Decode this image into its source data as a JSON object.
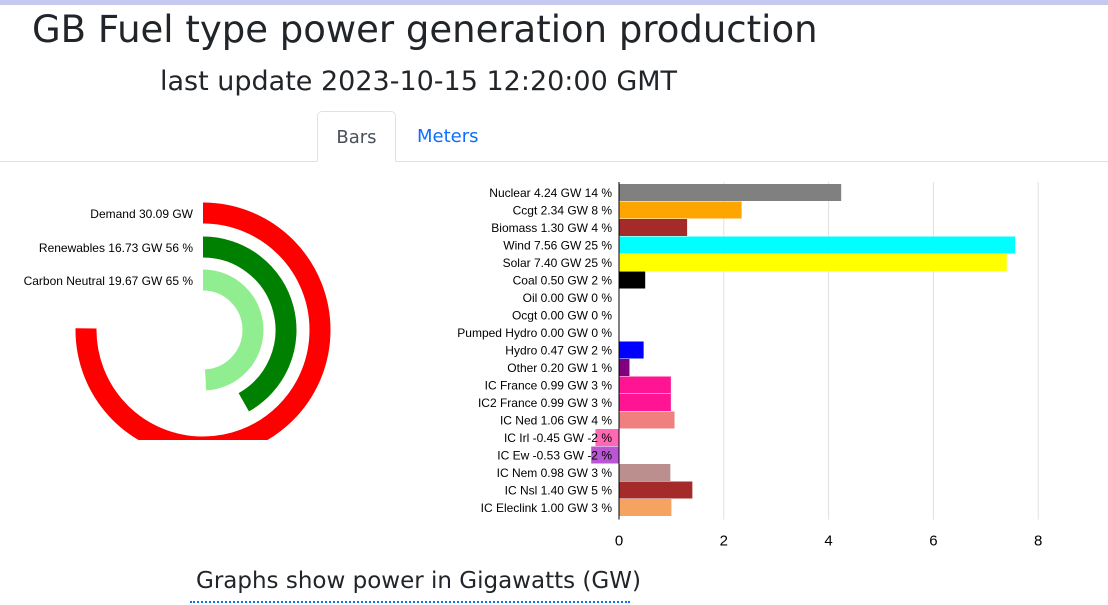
{
  "page": {
    "title": "GB Fuel type power generation production",
    "subtitle": "last update 2023-10-15 12:20:00 GMT",
    "footer": "Graphs show power in Gigawatts (GW)"
  },
  "tabs": [
    {
      "label": "Bars",
      "active": true
    },
    {
      "label": "Meters",
      "active": false
    }
  ],
  "colors": {
    "tab_link": "#0d6efd",
    "topbar": "#c5c9f0"
  },
  "chart_data": [
    {
      "type": "radial-bar",
      "max": 40,
      "series": [
        {
          "label": "Demand 30.09 GW",
          "value": 30.09,
          "color": "#ff0000"
        },
        {
          "label": "Renewables 16.73 GW 56 %",
          "value": 16.73,
          "color": "#008000"
        },
        {
          "label": "Carbon Neutral 19.67 GW 65 %",
          "value": 19.67,
          "color": "#90ee90"
        }
      ]
    },
    {
      "type": "bar",
      "orientation": "horizontal",
      "xlim": [
        -0.6,
        8.4
      ],
      "xticks": [
        0,
        2,
        4,
        6,
        8
      ],
      "grid": true,
      "bars": [
        {
          "label": "Nuclear 4.24 GW 14 %",
          "value": 4.24,
          "color": "#808080"
        },
        {
          "label": "Ccgt 2.34 GW 8 %",
          "value": 2.34,
          "color": "#ffa500"
        },
        {
          "label": "Biomass 1.30 GW 4 %",
          "value": 1.3,
          "color": "#a52a2a"
        },
        {
          "label": "Wind 7.56 GW 25 %",
          "value": 7.56,
          "color": "#00ffff"
        },
        {
          "label": "Solar 7.40 GW 25 %",
          "value": 7.4,
          "color": "#ffff00"
        },
        {
          "label": "Coal 0.50 GW 2 %",
          "value": 0.5,
          "color": "#000000"
        },
        {
          "label": "Oil 0.00 GW 0 %",
          "value": 0.0,
          "color": "#555555"
        },
        {
          "label": "Ocgt 0.00 GW 0 %",
          "value": 0.0,
          "color": "#777777"
        },
        {
          "label": "Pumped Hydro 0.00 GW 0 %",
          "value": 0.0,
          "color": "#4444aa"
        },
        {
          "label": "Hydro 0.47 GW 2 %",
          "value": 0.47,
          "color": "#0000ff"
        },
        {
          "label": "Other 0.20 GW 1 %",
          "value": 0.2,
          "color": "#800080"
        },
        {
          "label": "IC France 0.99 GW 3 %",
          "value": 0.99,
          "color": "#ff1493"
        },
        {
          "label": "IC2 France 0.99 GW 3 %",
          "value": 0.99,
          "color": "#ff1493"
        },
        {
          "label": "IC Ned 1.06 GW 4 %",
          "value": 1.06,
          "color": "#f08080"
        },
        {
          "label": "IC Irl -0.45 GW -2 %",
          "value": -0.45,
          "color": "#ff69b4"
        },
        {
          "label": "IC Ew -0.53 GW -2 %",
          "value": -0.53,
          "color": "#ba55d3"
        },
        {
          "label": "IC Nem 0.98 GW 3 %",
          "value": 0.98,
          "color": "#bc8f8f"
        },
        {
          "label": "IC Nsl 1.40 GW 5 %",
          "value": 1.4,
          "color": "#a52a2a"
        },
        {
          "label": "IC Eleclink 1.00 GW 3 %",
          "value": 1.0,
          "color": "#f4a460"
        }
      ]
    }
  ]
}
